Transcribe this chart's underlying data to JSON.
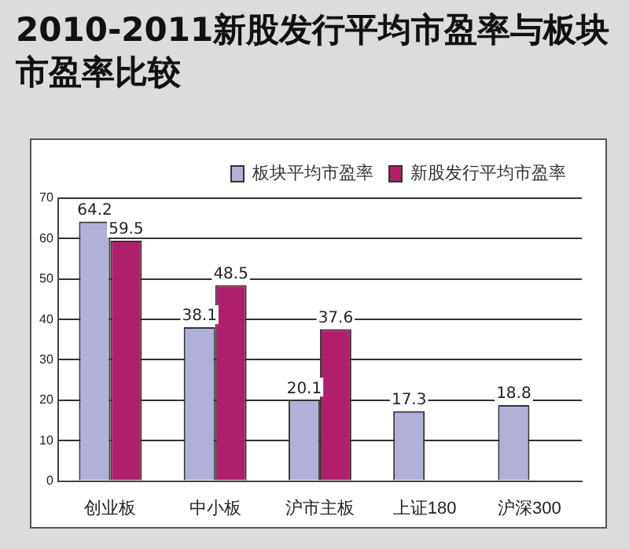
{
  "chart_data": {
    "type": "bar",
    "title": "2010-2011新股发行平均市盈率与板块市盈率比较",
    "categories": [
      "创业板",
      "中小板",
      "沪市主板",
      "上证180",
      "沪深300"
    ],
    "series": [
      {
        "name": "板块平均市盈率",
        "color": "#b0b0d8",
        "values": [
          64.2,
          38.1,
          20.1,
          17.3,
          18.8
        ]
      },
      {
        "name": "新股发行平均市盈率",
        "color": "#b0206a",
        "values": [
          59.5,
          48.5,
          37.6,
          null,
          null
        ]
      }
    ],
    "ylim": [
      0,
      70
    ],
    "yticks": [
      0,
      10,
      20,
      30,
      40,
      50,
      60,
      70
    ],
    "grid": "y",
    "legend": "top",
    "data_labels": true
  }
}
